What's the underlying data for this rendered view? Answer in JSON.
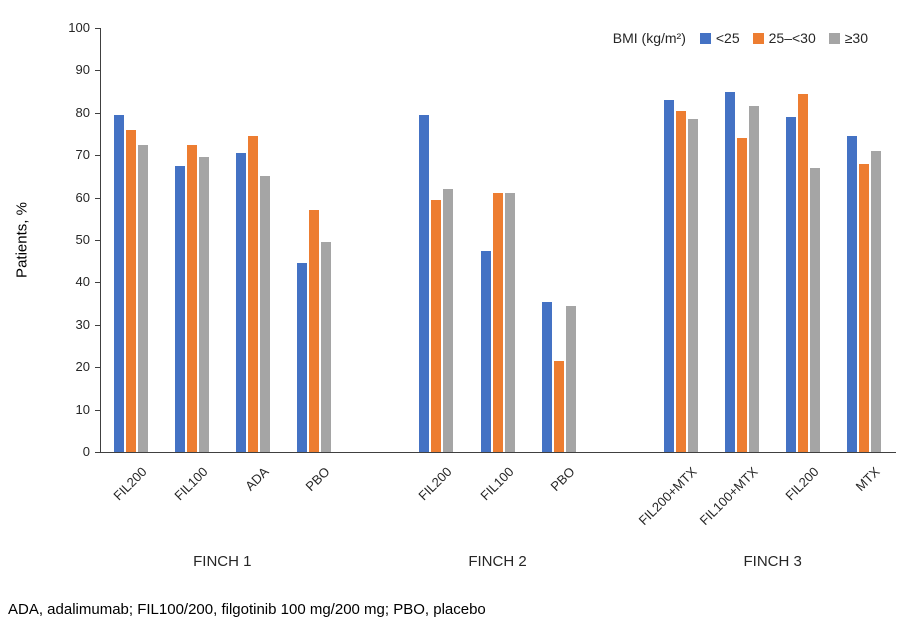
{
  "footnote": "ADA, adalimumab; FIL100/200, filgotinib 100 mg/200 mg; PBO, placebo",
  "chart_data": {
    "type": "bar",
    "title": "",
    "xlabel": "",
    "ylabel": "Patients, %",
    "ylim": [
      0,
      100
    ],
    "ytick_step": 10,
    "grid": false,
    "legend_position": "top-right",
    "legend_title": "BMI (kg/m²)",
    "series_names": [
      "<25",
      "25–<30",
      "≥30"
    ],
    "series_colors": [
      "#4472c4",
      "#ed7d31",
      "#a5a5a5"
    ],
    "groups": [
      {
        "label": "FINCH 1",
        "clusters": [
          {
            "label": "FIL200",
            "values": [
              79.5,
              76,
              72.5
            ]
          },
          {
            "label": "FIL100",
            "values": [
              67.5,
              72.5,
              69.5
            ]
          },
          {
            "label": "ADA",
            "values": [
              70.5,
              74.5,
              65
            ]
          },
          {
            "label": "PBO",
            "values": [
              44.5,
              57,
              49.5
            ]
          }
        ]
      },
      {
        "label": "FINCH 2",
        "clusters": [
          {
            "label": "FIL200",
            "values": [
              79.5,
              59.5,
              62
            ]
          },
          {
            "label": "FIL100",
            "values": [
              47.5,
              61,
              61
            ]
          },
          {
            "label": "PBO",
            "values": [
              35.5,
              21.5,
              34.5
            ]
          }
        ]
      },
      {
        "label": "FINCH 3",
        "clusters": [
          {
            "label": "FIL200+MTX",
            "values": [
              83,
              80.5,
              78.5
            ]
          },
          {
            "label": "FIL100+MTX",
            "values": [
              85,
              74,
              81.5
            ]
          },
          {
            "label": "FIL200",
            "values": [
              79,
              84.5,
              67
            ]
          },
          {
            "label": "MTX",
            "values": [
              74.5,
              68,
              71
            ]
          }
        ]
      }
    ]
  }
}
